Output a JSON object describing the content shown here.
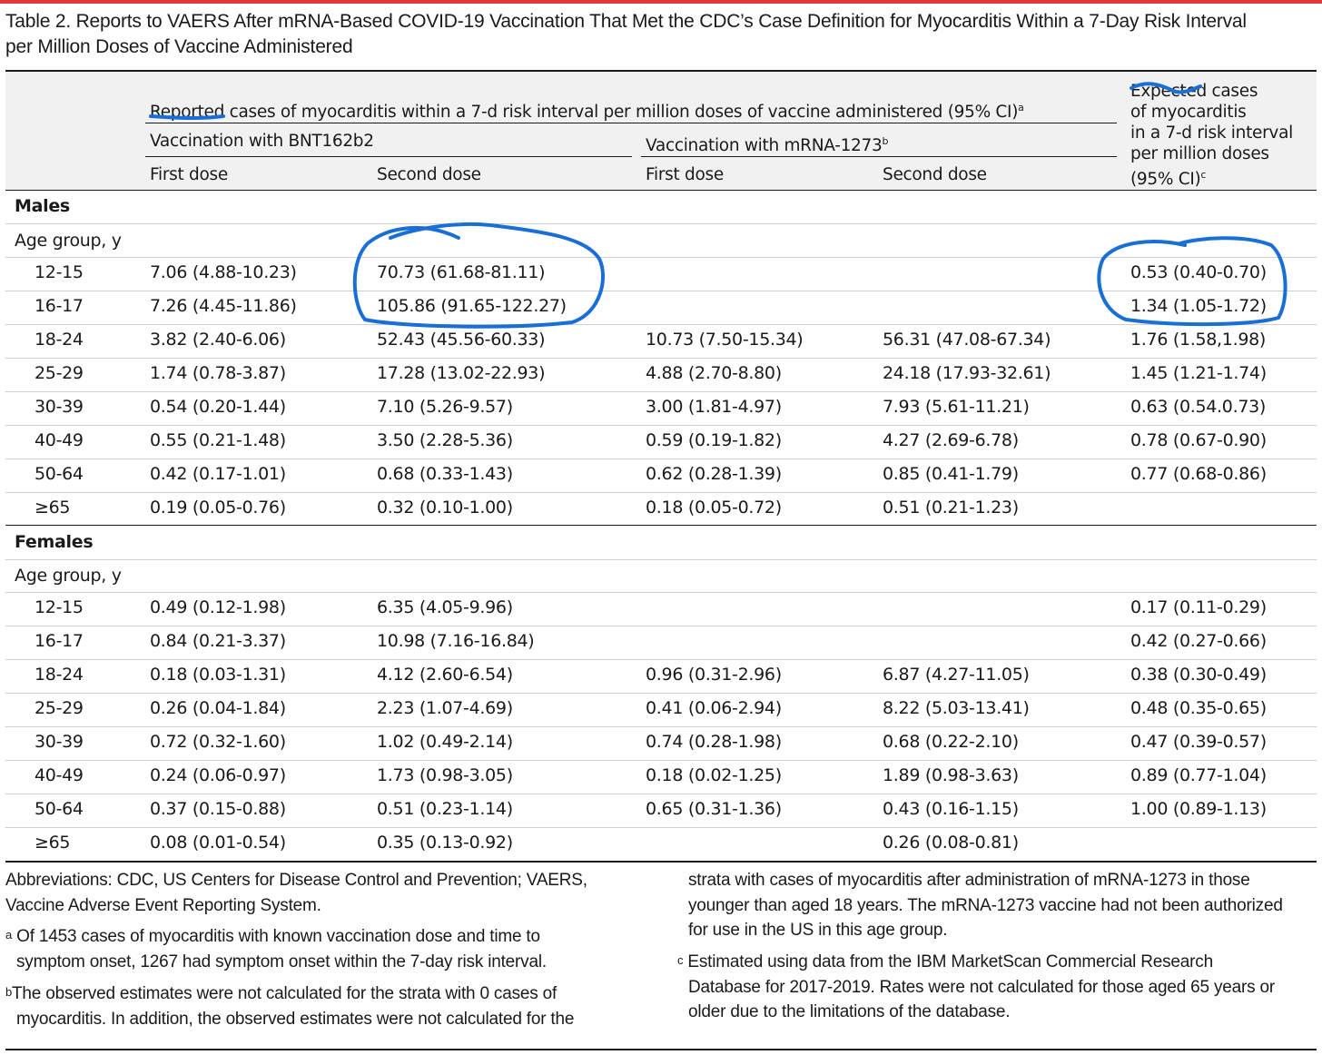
{
  "title_line1": "Table 2. Reports to VAERS After mRNA-Based COVID-19 Vaccination That Met the CDC’s Case Definition for Myocarditis Within a 7-Day Risk Interval",
  "title_line2": "per Million Doses of Vaccine Administered",
  "header": {
    "reported": "Reported cases of myocarditis within a 7-d risk interval per million doses of vaccine administered (95% CI)",
    "reported_mark": "a",
    "bnt": "Vaccination with BNT162b2",
    "mrna": "Vaccination with mRNA-1273",
    "mrna_mark": "b",
    "first_dose": "First dose",
    "second_dose": "Second dose",
    "expected_l1": "Expected cases",
    "expected_l2": "of myocarditis",
    "expected_l3": "in a 7-d risk interval",
    "expected_l4": "per million doses",
    "expected_l5": "(95% CI)",
    "expected_mark": "c"
  },
  "males": {
    "label": "Males",
    "age_label": "Age group, y",
    "rows": [
      {
        "age": "12-15",
        "bnt1": "7.06 (4.88-10.23)",
        "bnt2": "70.73 (61.68-81.11)",
        "m1": "",
        "m2": "",
        "exp": "0.53 (0.40-0.70)"
      },
      {
        "age": "16-17",
        "bnt1": "7.26 (4.45-11.86)",
        "bnt2": "105.86 (91.65-122.27)",
        "m1": "",
        "m2": "",
        "exp": "1.34 (1.05-1.72)"
      },
      {
        "age": "18-24",
        "bnt1": "3.82 (2.40-6.06)",
        "bnt2": "52.43 (45.56-60.33)",
        "m1": "10.73 (7.50-15.34)",
        "m2": "56.31 (47.08-67.34)",
        "exp": "1.76 (1.58,1.98)"
      },
      {
        "age": "25-29",
        "bnt1": "1.74 (0.78-3.87)",
        "bnt2": "17.28 (13.02-22.93)",
        "m1": "4.88 (2.70-8.80)",
        "m2": "24.18 (17.93-32.61)",
        "exp": "1.45 (1.21-1.74)"
      },
      {
        "age": "30-39",
        "bnt1": "0.54 (0.20-1.44)",
        "bnt2": "7.10 (5.26-9.57)",
        "m1": "3.00 (1.81-4.97)",
        "m2": "7.93 (5.61-11.21)",
        "exp": "0.63 (0.54.0.73)"
      },
      {
        "age": "40-49",
        "bnt1": "0.55 (0.21-1.48)",
        "bnt2": "3.50 (2.28-5.36)",
        "m1": "0.59 (0.19-1.82)",
        "m2": "4.27 (2.69-6.78)",
        "exp": "0.78 (0.67-0.90)"
      },
      {
        "age": "50-64",
        "bnt1": "0.42 (0.17-1.01)",
        "bnt2": "0.68 (0.33-1.43)",
        "m1": "0.62 (0.28-1.39)",
        "m2": "0.85 (0.41-1.79)",
        "exp": "0.77 (0.68-0.86)"
      },
      {
        "age": "≥65",
        "bnt1": "0.19 (0.05-0.76)",
        "bnt2": "0.32 (0.10-1.00)",
        "m1": "0.18 (0.05-0.72)",
        "m2": "0.51 (0.21-1.23)",
        "exp": ""
      }
    ]
  },
  "females": {
    "label": "Females",
    "age_label": "Age group, y",
    "rows": [
      {
        "age": "12-15",
        "bnt1": "0.49 (0.12-1.98)",
        "bnt2": "6.35 (4.05-9.96)",
        "m1": "",
        "m2": "",
        "exp": "0.17 (0.11-0.29)"
      },
      {
        "age": "16-17",
        "bnt1": "0.84 (0.21-3.37)",
        "bnt2": "10.98 (7.16-16.84)",
        "m1": "",
        "m2": "",
        "exp": "0.42 (0.27-0.66)"
      },
      {
        "age": "18-24",
        "bnt1": "0.18 (0.03-1.31)",
        "bnt2": "4.12 (2.60-6.54)",
        "m1": "0.96 (0.31-2.96)",
        "m2": "6.87 (4.27-11.05)",
        "exp": "0.38 (0.30-0.49)"
      },
      {
        "age": "25-29",
        "bnt1": "0.26 (0.04-1.84)",
        "bnt2": "2.23 (1.07-4.69)",
        "m1": "0.41 (0.06-2.94)",
        "m2": "8.22 (5.03-13.41)",
        "exp": "0.48 (0.35-0.65)"
      },
      {
        "age": "30-39",
        "bnt1": "0.72 (0.32-1.60)",
        "bnt2": "1.02 (0.49-2.14)",
        "m1": "0.74 (0.28-1.98)",
        "m2": "0.68 (0.22-2.10)",
        "exp": "0.47 (0.39-0.57)"
      },
      {
        "age": "40-49",
        "bnt1": "0.24 (0.06-0.97)",
        "bnt2": "1.73 (0.98-3.05)",
        "m1": "0.18 (0.02-1.25)",
        "m2": "1.89 (0.98-3.63)",
        "exp": "0.89 (0.77-1.04)"
      },
      {
        "age": "50-64",
        "bnt1": "0.37 (0.15-0.88)",
        "bnt2": "0.51 (0.23-1.14)",
        "m1": "0.65 (0.31-1.36)",
        "m2": "0.43 (0.16-1.15)",
        "exp": "1.00 (0.89-1.13)"
      },
      {
        "age": "≥65",
        "bnt1": "0.08 (0.01-0.54)",
        "bnt2": "0.35 (0.13-0.92)",
        "m1": "",
        "m2": "0.26 (0.08-0.81)",
        "exp": ""
      }
    ]
  },
  "footnotes": {
    "abbr_l1": "Abbreviations: CDC, US Centers for Disease Control and Prevention; VAERS,",
    "abbr_l2": "Vaccine Adverse Event Reporting System.",
    "a_mark": "a",
    "a_l1": "Of 1453 cases of myocarditis with known vaccination dose and time to",
    "a_l2": "symptom onset, 1267 had symptom onset within the 7-day risk interval.",
    "b_mark": "b",
    "b_l1": "The observed estimates were not calculated for the strata with 0 cases of",
    "b_l2": "myocarditis. In addition, the observed estimates were not calculated for the",
    "b_l3": "strata with cases of myocarditis after administration of mRNA-1273 in those",
    "b_l4": "younger than aged 18 years. The mRNA-1273 vaccine had not been authorized",
    "b_l5": "for use in the US in this age group.",
    "c_mark": "c",
    "c_l1": "Estimated using data from the IBM MarketScan Commercial Research",
    "c_l2": "Database for 2017-2019. Rates were not calculated for those aged 65 years or",
    "c_l3": "older due to the limitations of the database."
  },
  "annotation_color": "#1a6fd6"
}
